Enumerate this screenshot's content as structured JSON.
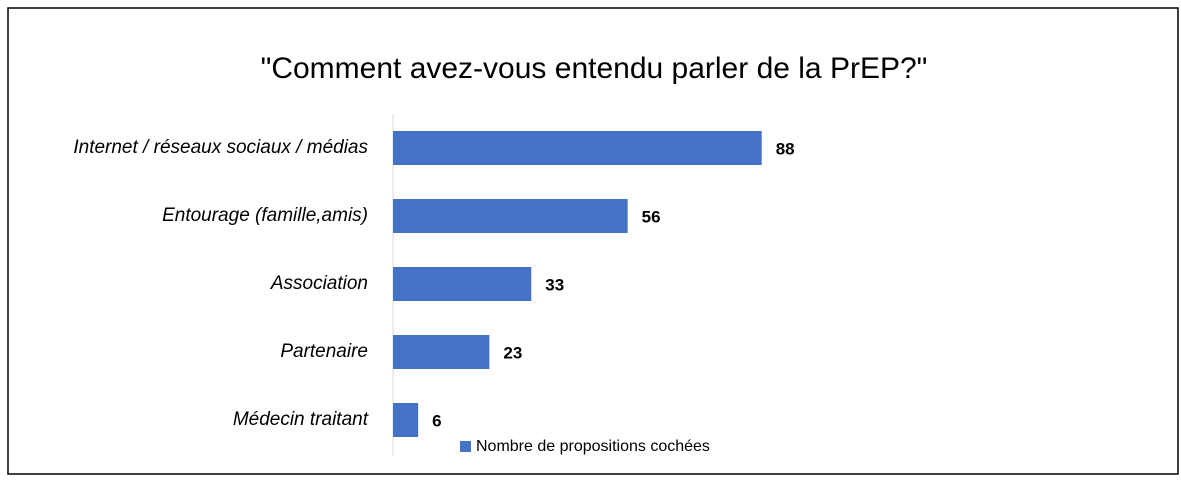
{
  "chart_data": {
    "type": "hbar",
    "title": "\"Comment avez-vous entendu parler de la PrEP?\"",
    "categories": [
      "Internet / réseaux sociaux / médias",
      "Entourage (famille,amis)",
      "Association",
      "Partenaire",
      "Médecin traitant"
    ],
    "series": [
      {
        "name": "Nombre de propositions cochées",
        "color": "#4472c4",
        "values": [
          88,
          56,
          33,
          23,
          6
        ]
      }
    ],
    "xlim": [
      0,
      100
    ],
    "grid": false,
    "legend": "bottom"
  }
}
